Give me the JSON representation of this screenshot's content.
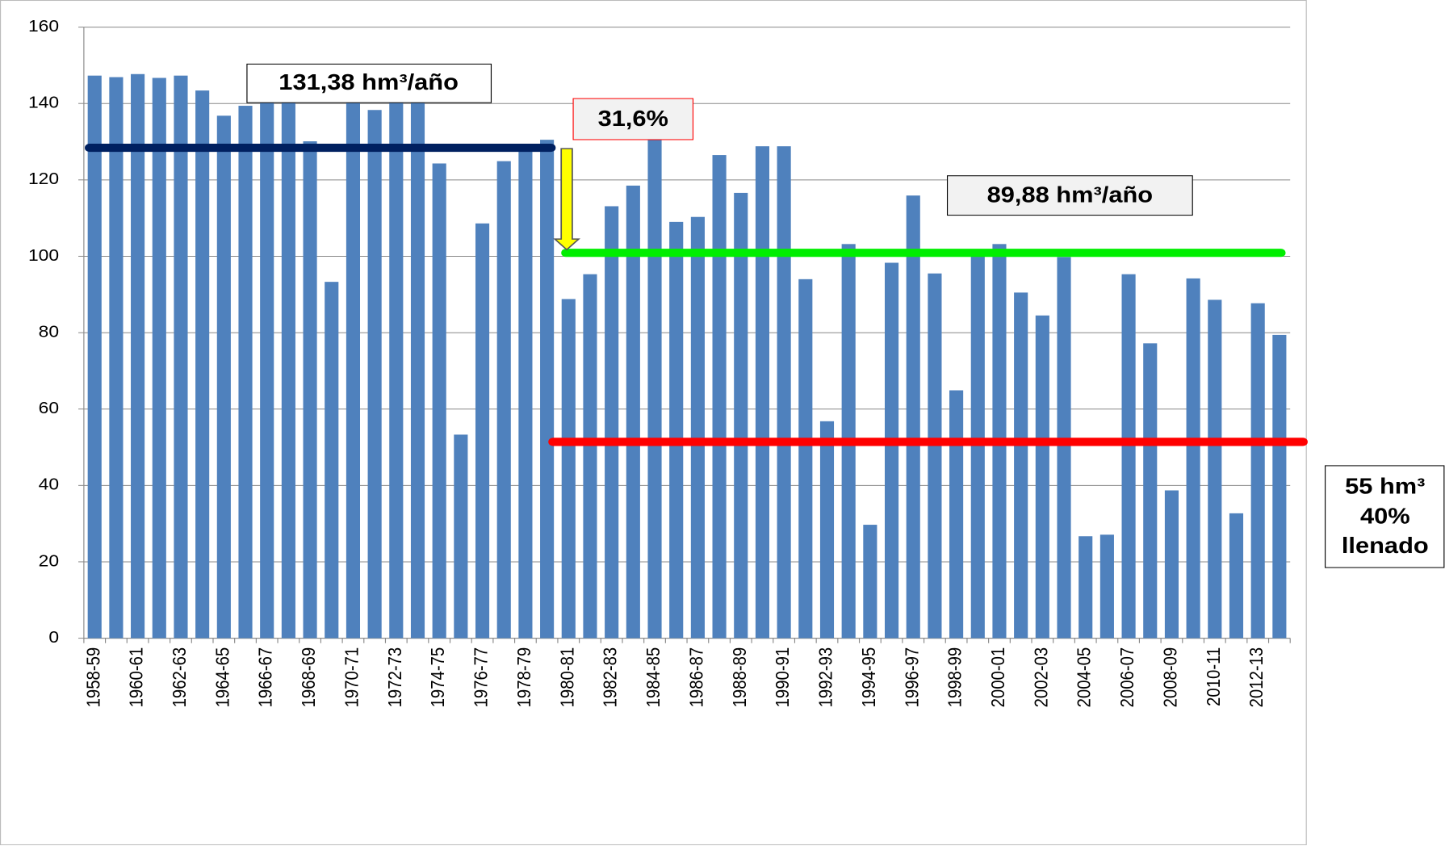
{
  "chart_data": {
    "type": "bar",
    "categories": [
      "1958-59",
      null,
      "1960-61",
      null,
      "1962-63",
      null,
      "1964-65",
      null,
      "1966-67",
      null,
      "1968-69",
      null,
      "1970-71",
      null,
      "1972-73",
      null,
      "1974-75",
      null,
      "1976-77",
      null,
      "1978-79",
      null,
      "1980-81",
      null,
      "1982-83",
      null,
      "1984-85",
      null,
      "1986-87",
      null,
      "1988-89",
      null,
      "1990-91",
      null,
      "1992-93",
      null,
      "1994-95",
      null,
      "1996-97",
      null,
      "1998-99",
      null,
      "2000-01",
      null,
      "2002-03",
      null,
      "2004-05",
      null,
      "2006-07",
      null,
      "2008-09",
      null,
      "2010-11",
      null,
      "2012-13",
      null
    ],
    "values": [
      147.3,
      146.9,
      147.7,
      146.7,
      147.3,
      143.4,
      136.8,
      139.4,
      141,
      141,
      130.1,
      93.3,
      141,
      138.3,
      141.1,
      141,
      124.3,
      53.3,
      108.6,
      124.9,
      127.5,
      130.5,
      88.8,
      95.3,
      113.1,
      118.5,
      133.3,
      109,
      110.3,
      126.5,
      116.6,
      128.8,
      128.8,
      94,
      56.8,
      103.2,
      29.7,
      98.3,
      115.9,
      95.5,
      64.9,
      100.4,
      103.2,
      90.5,
      84.5,
      99.8,
      26.7,
      27.1,
      95.3,
      77.2,
      38.7,
      94.2,
      88.6,
      32.7,
      87.7,
      79.4
    ],
    "color": "#4f81bd",
    "ylim": [
      0,
      160
    ],
    "yticks": [
      0,
      20,
      40,
      60,
      80,
      100,
      120,
      140,
      160
    ],
    "grid": true,
    "reference_lines": [
      {
        "value": 128.4,
        "color": "#002060"
      },
      {
        "value": 100.9,
        "color": "#00ee00"
      },
      {
        "value": 51.4,
        "color": "#ff0000"
      }
    ],
    "annotations": [
      "131,38 hm³/año",
      "31,6%",
      "89,88 hm³/año",
      "55 hm³",
      "40%",
      "llenado"
    ]
  }
}
